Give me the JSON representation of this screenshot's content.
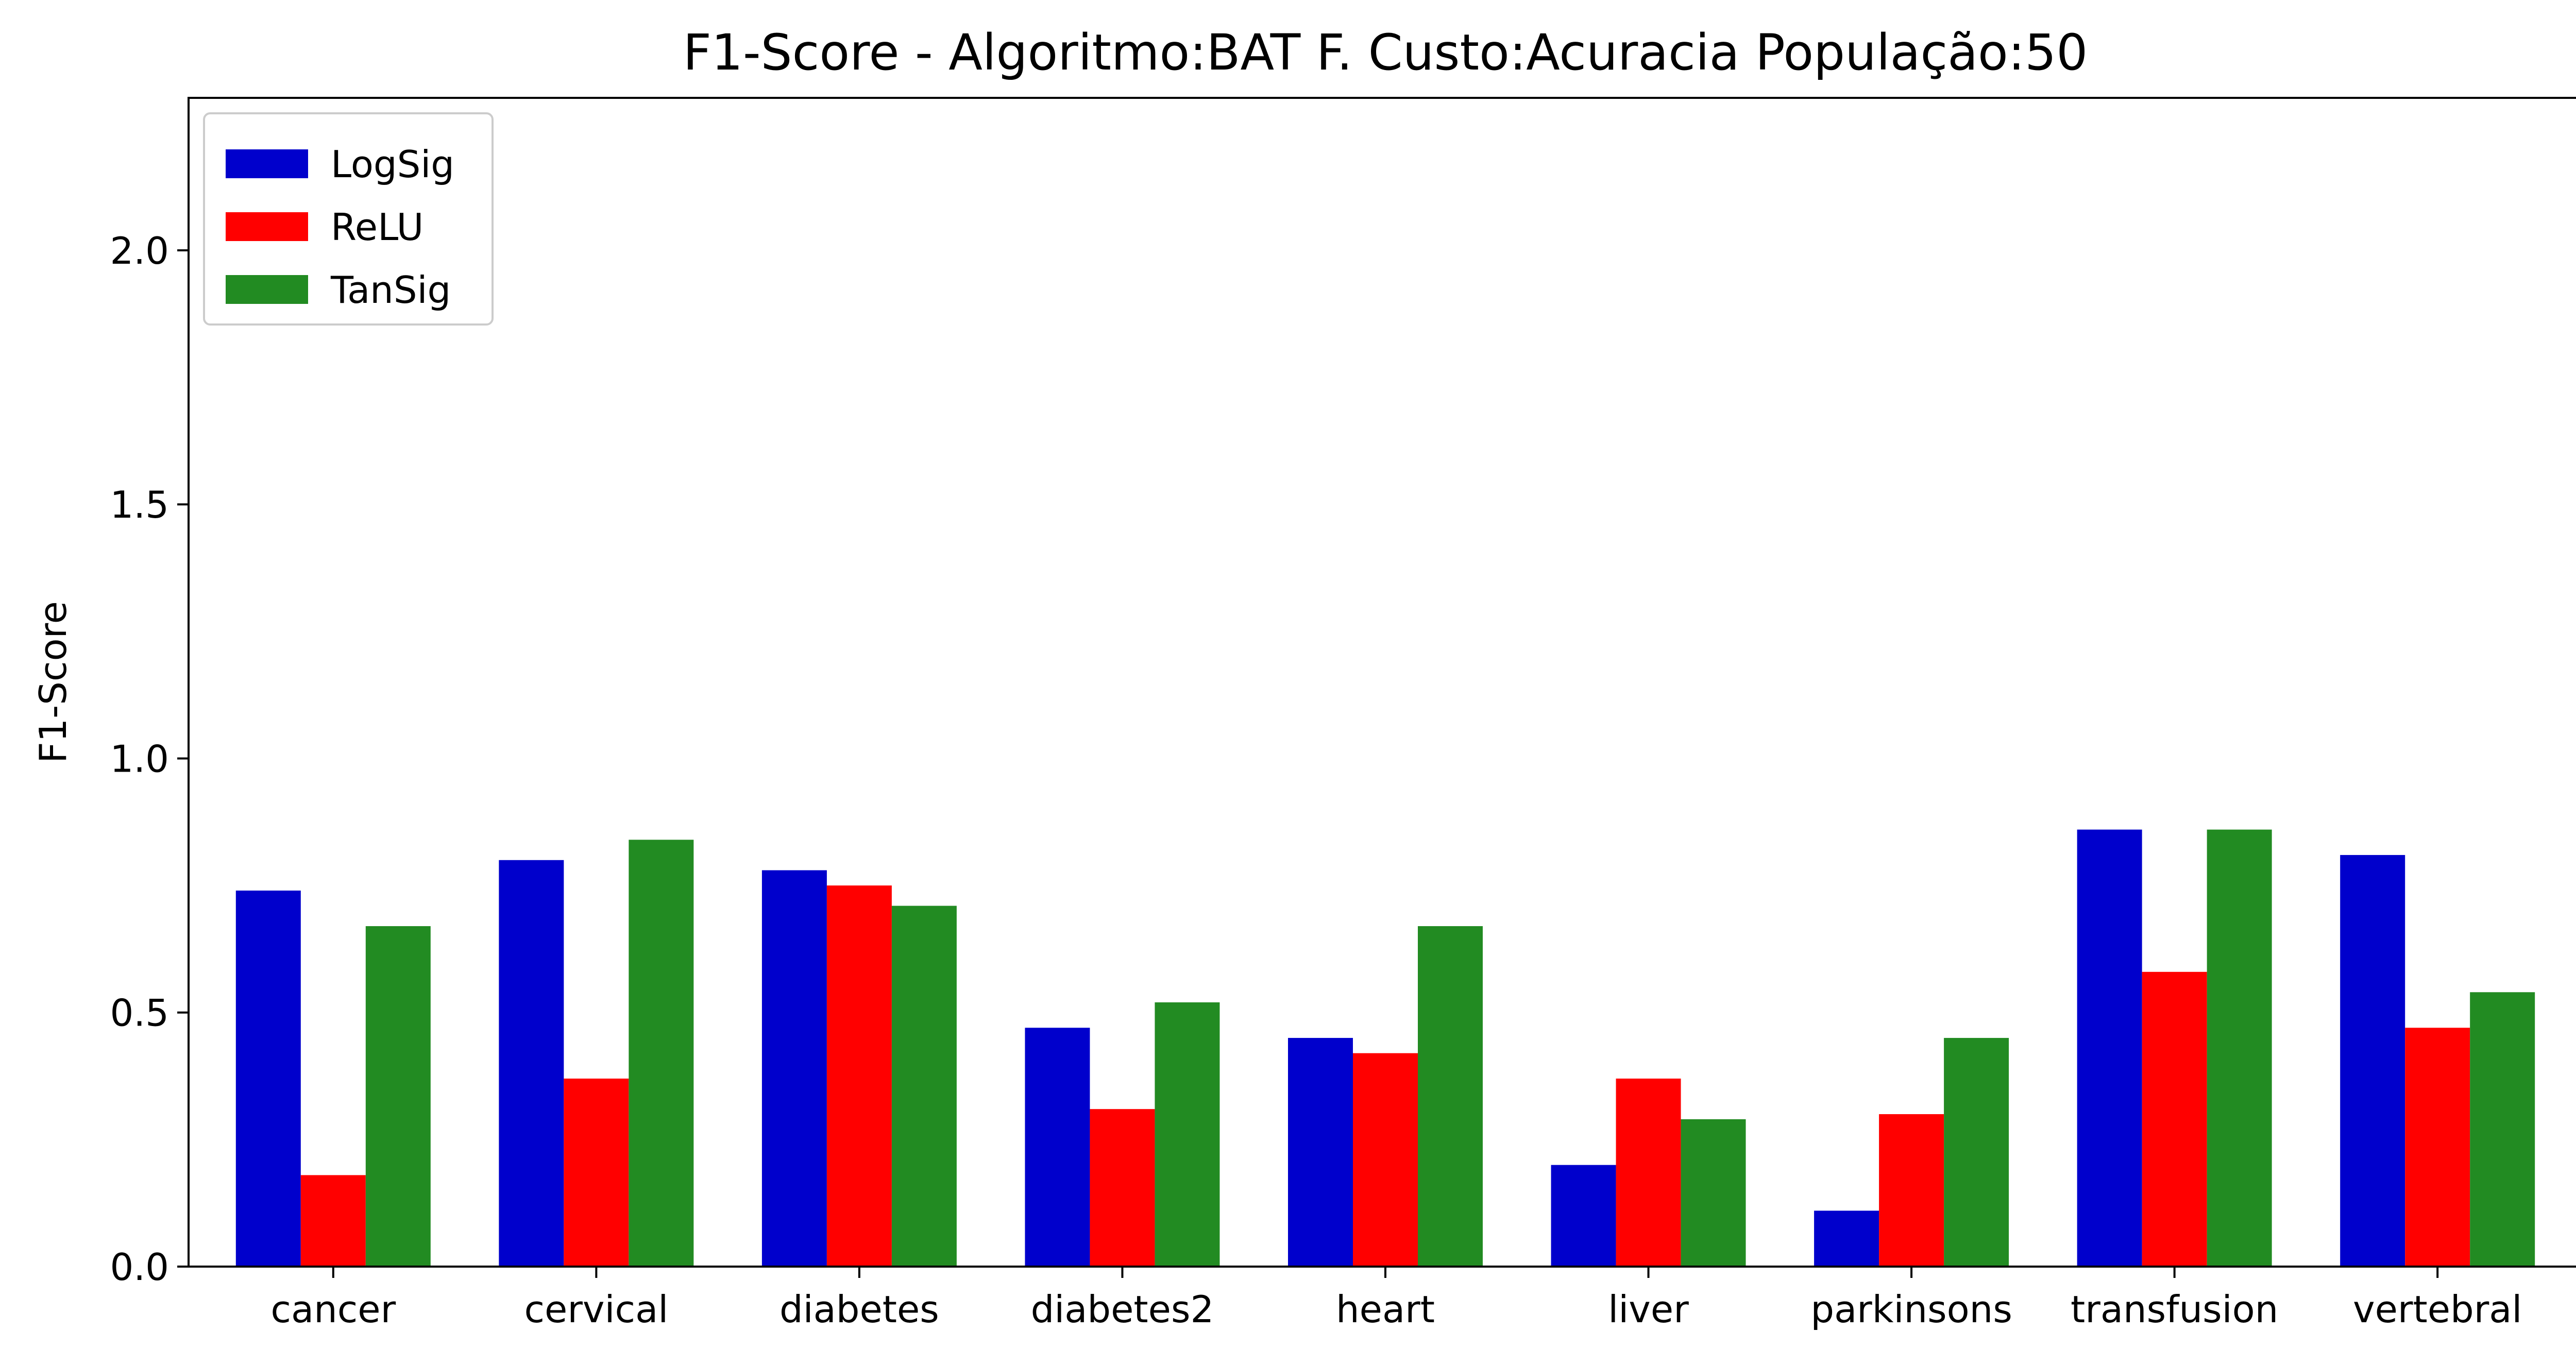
{
  "chart_data": {
    "type": "bar",
    "title": "F1-Score - Algoritmo:BAT F. Custo:Acuracia População:50",
    "xlabel": "",
    "ylabel": "F1-Score",
    "ylim": [
      0,
      2.3
    ],
    "yticks": [
      0.0,
      0.5,
      1.0,
      1.5,
      2.0
    ],
    "ytick_labels": [
      "0.0",
      "0.5",
      "1.0",
      "1.5",
      "2.0"
    ],
    "categories": [
      "cancer",
      "cervical",
      "diabetes",
      "diabetes2",
      "heart",
      "liver",
      "parkinsons",
      "transfusion",
      "vertebral"
    ],
    "series": [
      {
        "name": "LogSig",
        "color": "#0000cc",
        "values": [
          0.74,
          0.8,
          0.78,
          0.47,
          0.45,
          0.2,
          0.11,
          0.86,
          0.81
        ]
      },
      {
        "name": "ReLU",
        "color": "#ff0000",
        "values": [
          0.18,
          0.37,
          0.75,
          0.31,
          0.42,
          0.37,
          0.3,
          0.58,
          0.47
        ]
      },
      {
        "name": "TanSig",
        "color": "#228b22",
        "values": [
          0.67,
          0.84,
          0.71,
          0.52,
          0.67,
          0.29,
          0.45,
          0.86,
          0.54
        ]
      }
    ],
    "grid": false,
    "legend_position": "top-left"
  }
}
